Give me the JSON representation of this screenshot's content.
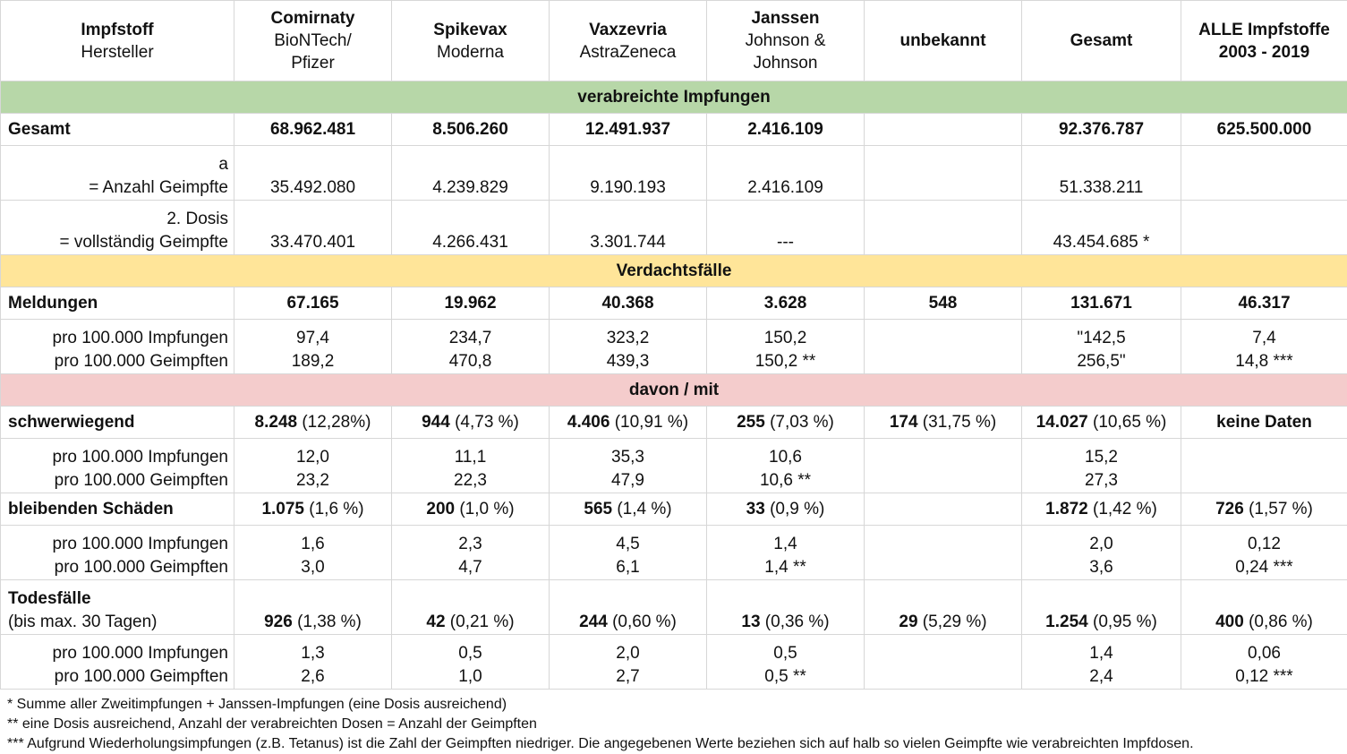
{
  "header": {
    "impfstoff": "Impfstoff",
    "hersteller": "Hersteller",
    "columns": [
      {
        "name": "Comirnaty",
        "sub1": "BioNTech/",
        "sub2": "Pfizer"
      },
      {
        "name": "Spikevax",
        "sub1": "Moderna"
      },
      {
        "name": "Vaxzevria",
        "sub1": "AstraZeneca"
      },
      {
        "name": "Janssen",
        "sub1": "Johnson &",
        "sub2": "Johnson"
      },
      {
        "name": "unbekannt"
      },
      {
        "name": "Gesamt"
      },
      {
        "name": "ALLE Impfstoffe",
        "sub1": "2003 - 2019"
      }
    ]
  },
  "sections": {
    "verabreicht": "verabreichte Impfungen",
    "verdacht": "Verdachtsfälle",
    "davon": "davon / mit"
  },
  "gesamt": {
    "label": "Gesamt",
    "values": [
      "68.962.481",
      "8.506.260",
      "12.491.937",
      "2.416.109",
      "",
      "92.376.787",
      "625.500.000"
    ]
  },
  "erste_dosis": {
    "label1": "a",
    "label2": "= Anzahl Geimpfte",
    "values": [
      "35.492.080",
      "4.239.829",
      "9.190.193",
      "2.416.109",
      "",
      "51.338.211",
      ""
    ]
  },
  "zweite_dosis": {
    "label1": "2. Dosis",
    "label2": "= vollständig Geimpfte",
    "values": [
      "33.470.401",
      "4.266.431",
      "3.301.744",
      "---",
      "",
      "43.454.685 *",
      ""
    ]
  },
  "meldungen": {
    "label": "Meldungen",
    "values": [
      "67.165",
      "19.962",
      "40.368",
      "3.628",
      "548",
      "131.671",
      "46.317"
    ],
    "rate_label1": "pro 100.000 Impfungen",
    "rate_label2": "pro 100.000 Geimpften",
    "rate1": [
      "97,4",
      "234,7",
      "323,2",
      "150,2",
      "",
      "\"142,5",
      "7,4"
    ],
    "rate2": [
      "189,2",
      "470,8",
      "439,3",
      "150,2 **",
      "",
      "256,5\"",
      "14,8 ***"
    ]
  },
  "schwer": {
    "label": "schwerwiegend",
    "bold": [
      "8.248",
      "944",
      "4.406",
      "255",
      "174",
      "14.027",
      "keine Daten"
    ],
    "pct": [
      "(12,28%)",
      "(4,73 %)",
      "(10,91 %)",
      "(7,03 %)",
      "(31,75 %)",
      "(10,65 %)",
      ""
    ],
    "rate_label1": "pro 100.000 Impfungen",
    "rate_label2": "pro 100.000 Geimpften",
    "rate1": [
      "12,0",
      "11,1",
      "35,3",
      "10,6",
      "",
      "15,2",
      ""
    ],
    "rate2": [
      "23,2",
      "22,3",
      "47,9",
      "10,6 **",
      "",
      "27,3",
      ""
    ]
  },
  "bleibend": {
    "label": "bleibenden Schäden",
    "bold": [
      "1.075",
      "200",
      "565",
      "33",
      "",
      "1.872",
      "726"
    ],
    "pct": [
      "(1,6 %)",
      "(1,0 %)",
      "(1,4 %)",
      "(0,9 %)",
      "",
      "(1,42 %)",
      "(1,57 %)"
    ],
    "rate_label1": "pro 100.000 Impfungen",
    "rate_label2": "pro 100.000 Geimpften",
    "rate1": [
      "1,6",
      "2,3",
      "4,5",
      "1,4",
      "",
      "2,0",
      "0,12"
    ],
    "rate2": [
      "3,0",
      "4,7",
      "6,1",
      "1,4 **",
      "",
      "3,6",
      "0,24 ***"
    ]
  },
  "tod": {
    "label1": "Todesfälle",
    "label2": "(bis max. 30 Tagen)",
    "bold": [
      "926",
      "42",
      "244",
      "13",
      "29",
      "1.254",
      "400"
    ],
    "pct": [
      "(1,38 %)",
      "(0,21 %)",
      "(0,60 %)",
      "(0,36 %)",
      "(5,29 %)",
      "(0,95 %)",
      "(0,86 %)"
    ],
    "rate_label1": "pro 100.000 Impfungen",
    "rate_label2": "pro 100.000 Geimpften",
    "rate1": [
      "1,3",
      "0,5",
      "2,0",
      "0,5",
      "",
      "1,4",
      "0,06"
    ],
    "rate2": [
      "2,6",
      "1,0",
      "2,7",
      "0,5 **",
      "",
      "2,4",
      "0,12 ***"
    ]
  },
  "notes": [
    "* Summe aller Zweitimpfungen + Janssen-Impfungen (eine Dosis ausreichend)",
    "** eine Dosis ausreichend, Anzahl der verabreichten Dosen = Anzahl der Geimpften",
    "*** Aufgrund Wiederholungsimpfungen (z.B. Tetanus) ist die Zahl der Geimpften niedriger. Die angegebenen Werte beziehen sich auf halb so vielen Geimpfte wie verabreichten Impfdosen."
  ],
  "colors": {
    "section_green": "#b7d7a8",
    "section_yellow": "#ffe599",
    "section_red": "#f4cccc",
    "grid": "#d7d7d7"
  }
}
